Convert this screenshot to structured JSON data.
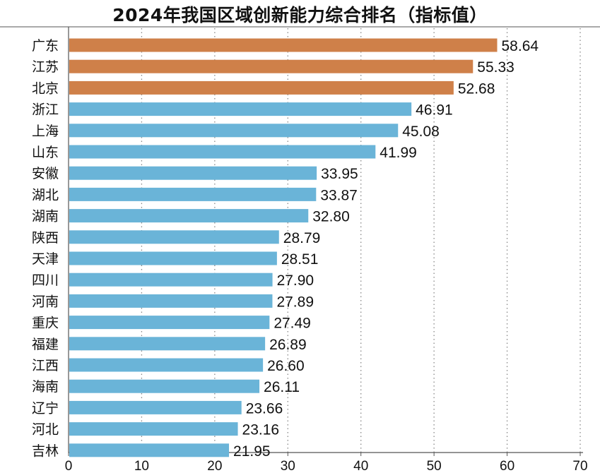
{
  "chart_data": {
    "type": "bar",
    "orientation": "horizontal",
    "title": "2024年我国区域创新能力综合排名（指标值）",
    "categories": [
      "广东",
      "江苏",
      "北京",
      "浙江",
      "上海",
      "山东",
      "安徽",
      "湖北",
      "湖南",
      "陕西",
      "天津",
      "四川",
      "河南",
      "重庆",
      "福建",
      "江西",
      "海南",
      "辽宁",
      "河北",
      "吉林"
    ],
    "values": [
      58.64,
      55.33,
      52.68,
      46.91,
      45.08,
      41.99,
      33.95,
      33.87,
      32.8,
      28.79,
      28.51,
      27.9,
      27.89,
      27.49,
      26.89,
      26.6,
      26.11,
      23.66,
      23.16,
      21.95
    ],
    "value_labels": [
      "58.64",
      "55.33",
      "52.68",
      "46.91",
      "45.08",
      "41.99",
      "33.95",
      "33.87",
      "32.80",
      "28.79",
      "28.51",
      "27.90",
      "27.89",
      "27.49",
      "26.89",
      "26.60",
      "26.11",
      "23.66",
      "23.16",
      "21.95"
    ],
    "xlim": [
      0,
      70
    ],
    "x_ticks": [
      "0",
      "10",
      "20",
      "30",
      "40",
      "50",
      "60",
      "70"
    ],
    "xlabel": "",
    "ylabel": "",
    "grid": "vertical dotted",
    "colors": {
      "highlight": "#cf8049",
      "default": "#6ab4d8",
      "grid": "#888888",
      "axis": "#555555"
    },
    "highlight_count": 3
  }
}
